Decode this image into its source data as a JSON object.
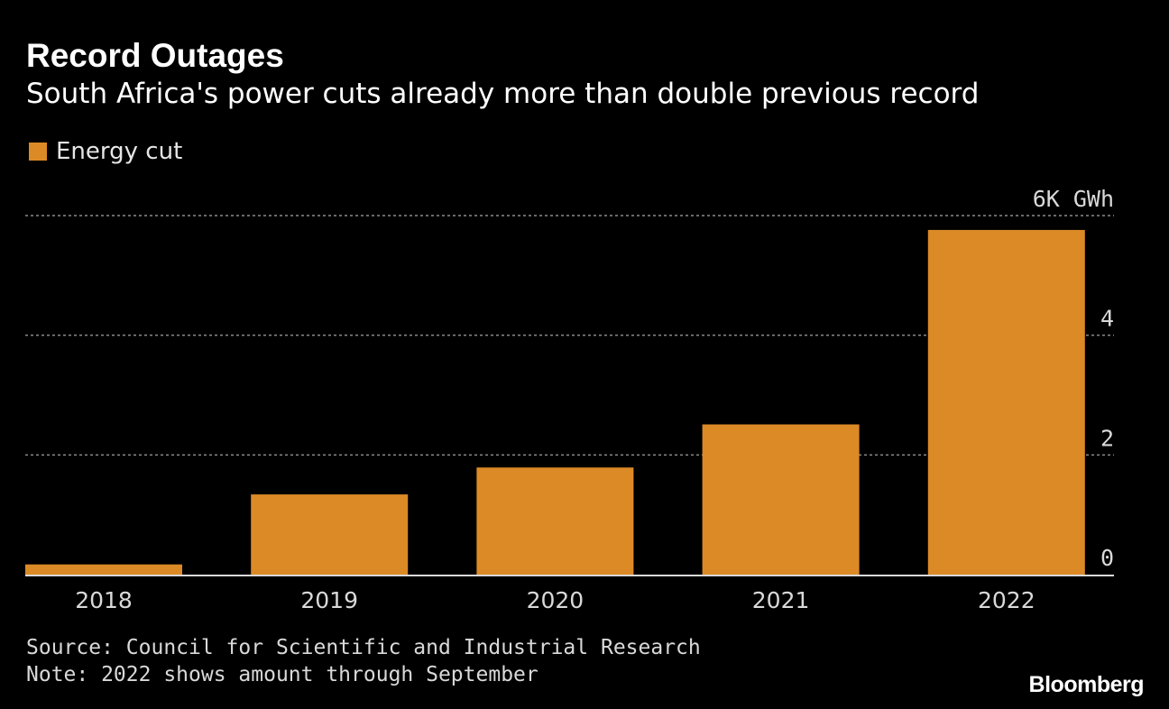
{
  "header": {
    "title": "Record Outages",
    "subtitle": "South Africa's power cuts already more than double previous record"
  },
  "legend": {
    "label": "Energy cut"
  },
  "colors": {
    "bar": "#DC8A26",
    "background": "#000000",
    "gridline": "#8c8c8c",
    "axis": "#d9d9d9",
    "text": "#ffffff",
    "muted_text": "#d9d9d9"
  },
  "chart_data": {
    "type": "bar",
    "title": "Record Outages",
    "subtitle": "South Africa's power cuts already more than double previous record",
    "categories": [
      "2018",
      "2019",
      "2020",
      "2021",
      "2022"
    ],
    "series": [
      {
        "name": "Energy cut",
        "values": [
          0.17,
          1.34,
          1.79,
          2.51,
          5.76
        ]
      }
    ],
    "unit": "GWh",
    "ylim": [
      0,
      6
    ],
    "yticks": [
      0,
      2,
      4,
      6
    ],
    "ytick_labels": [
      "0",
      "2",
      "4",
      "6K GWh"
    ],
    "xlabel": "",
    "ylabel": "",
    "grid": true,
    "legend_position": "top-left"
  },
  "footer": {
    "source": "Source: Council for Scientific and Industrial Research",
    "note": "Note: 2022 shows amount through September",
    "brand": "Bloomberg"
  }
}
